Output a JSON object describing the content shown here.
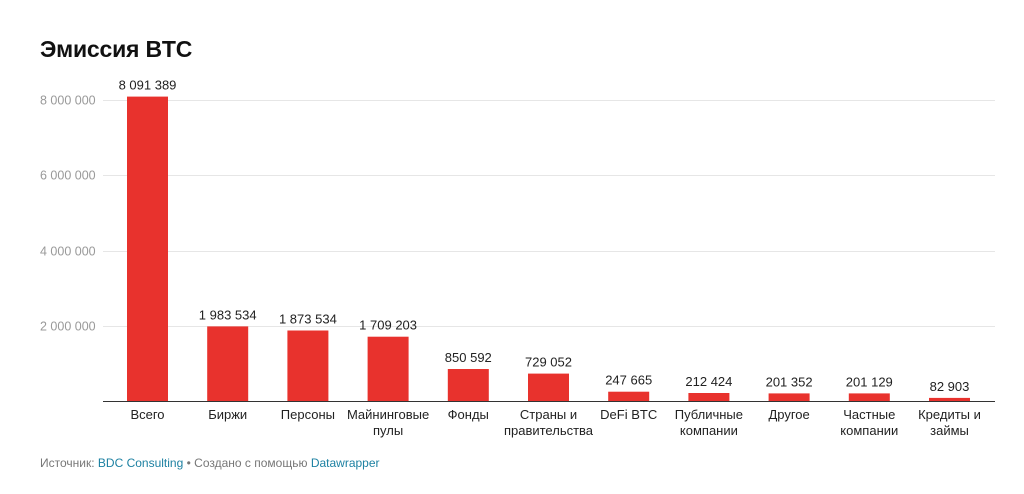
{
  "chart_data": {
    "type": "bar",
    "title": "Эмиссия BTC",
    "categories": [
      "Всего",
      "Биржи",
      "Персоны",
      "Майнинговые пулы",
      "Фонды",
      "Страны и правительства",
      "DeFi BTC",
      "Публичные компании",
      "Другое",
      "Частные компании",
      "Кредиты и займы"
    ],
    "category_lines": [
      [
        "Всего"
      ],
      [
        "Биржи"
      ],
      [
        "Персоны"
      ],
      [
        "Майнинговые",
        "пулы"
      ],
      [
        "Фонды"
      ],
      [
        "Страны и",
        "правительства"
      ],
      [
        "DeFi BTC"
      ],
      [
        "Публичные",
        "компании"
      ],
      [
        "Другое"
      ],
      [
        "Частные",
        "компании"
      ],
      [
        "Кредиты и",
        "займы"
      ]
    ],
    "values": [
      8091389,
      1983534,
      1873534,
      1709203,
      850592,
      729052,
      247665,
      212424,
      201352,
      201129,
      82903
    ],
    "value_labels": [
      "8 091 389",
      "1 983 534",
      "1 873 534",
      "1 709 203",
      "850 592",
      "729 052",
      "247 665",
      "212 424",
      "201 352",
      "201 129",
      "82 903"
    ],
    "y_ticks": [
      2000000,
      4000000,
      6000000,
      8000000
    ],
    "y_tick_labels": [
      "2 000 000",
      "4 000 000",
      "6 000 000",
      "8 000 000"
    ],
    "ylim": [
      0,
      8000000
    ],
    "grid": true,
    "bar_color": "#e8322d",
    "xlabel": "",
    "ylabel": ""
  },
  "footer": {
    "source_prefix": "Источник: ",
    "source_name": "BDC Consulting",
    "separator": " • ",
    "created_prefix": "Создано с помощью ",
    "tool_name": "Datawrapper"
  }
}
